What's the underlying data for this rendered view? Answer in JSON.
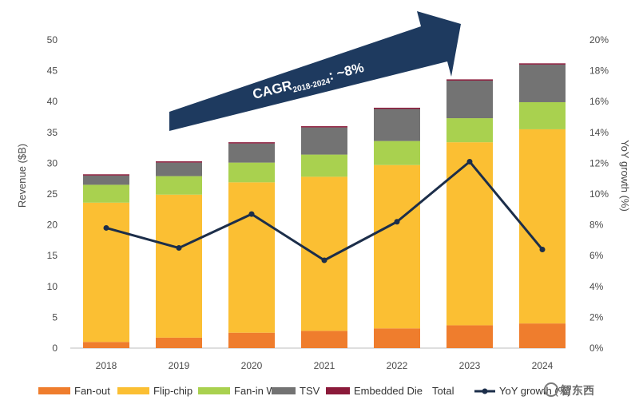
{
  "chart_data": {
    "type": "bar",
    "stacked": true,
    "categories": [
      "2018",
      "2019",
      "2020",
      "2021",
      "2022",
      "2023",
      "2024"
    ],
    "series": [
      {
        "name": "Fan-out",
        "values": [
          1.0,
          1.7,
          2.5,
          2.8,
          3.2,
          3.7,
          4.0
        ],
        "color": "#ef7d2d"
      },
      {
        "name": "Flip-chip",
        "values": [
          22.6,
          23.2,
          24.4,
          25.0,
          26.5,
          29.7,
          31.5
        ],
        "color": "#fbbf33"
      },
      {
        "name": "Fan-in WLP",
        "values": [
          2.9,
          3.0,
          3.2,
          3.6,
          3.9,
          3.9,
          4.4
        ],
        "color": "#a9d14f"
      },
      {
        "name": "TSV",
        "values": [
          1.5,
          2.2,
          3.1,
          4.4,
          5.2,
          6.1,
          6.1
        ],
        "color": "#737373"
      },
      {
        "name": "Embedded Die",
        "values": [
          0.2,
          0.2,
          0.2,
          0.2,
          0.2,
          0.2,
          0.2
        ],
        "color": "#8b1a3a"
      }
    ],
    "total_label": "Total",
    "line_series": {
      "name": "YoY growth (%)",
      "values": [
        7.8,
        6.5,
        8.7,
        5.7,
        8.2,
        12.1,
        6.4
      ],
      "color": "#1c2e4a",
      "axis": "right"
    },
    "ylabel": "Revenue ($B)",
    "y2label": "YoY growth (%)",
    "ylim": [
      0,
      50
    ],
    "y2lim": [
      0,
      20
    ],
    "yticks": [
      "0",
      "5",
      "10",
      "15",
      "20",
      "25",
      "30",
      "35",
      "40",
      "45",
      "50"
    ],
    "y2ticks": [
      "0%",
      "2%",
      "4%",
      "6%",
      "8%",
      "10%",
      "12%",
      "14%",
      "16%",
      "18%",
      "20%"
    ],
    "annotation": {
      "text": "CAGR",
      "subscript": "2018-2024",
      "value": ": ~8%",
      "color": "#1e3a5f"
    },
    "legend_position": "bottom"
  },
  "watermark": {
    "text": "智东西"
  }
}
